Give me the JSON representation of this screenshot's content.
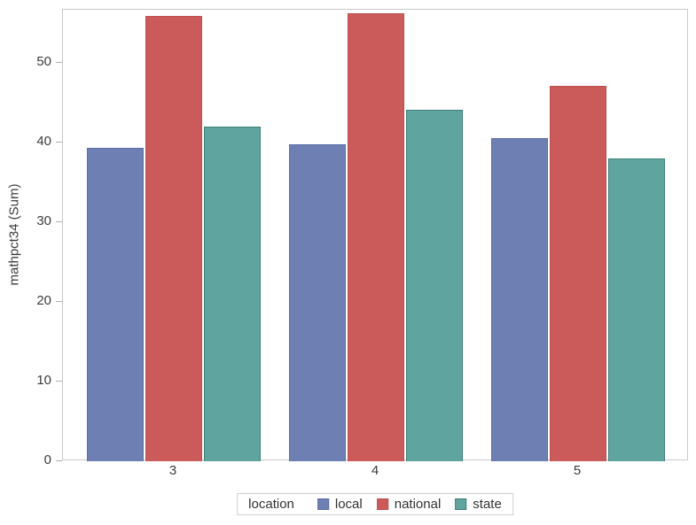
{
  "chart_data": {
    "type": "bar",
    "title": "",
    "xlabel": "",
    "ylabel": "mathpct34 (Sum)",
    "categories": [
      "3",
      "4",
      "5"
    ],
    "series": [
      {
        "name": "local",
        "color": "#6E7FB3",
        "border_color": "#5D6DA8",
        "values": [
          39.4,
          39.8,
          40.6
        ]
      },
      {
        "name": "national",
        "color": "#CB5B5B",
        "border_color": "#BE4F4F",
        "values": [
          55.9,
          56.2,
          47.1
        ]
      },
      {
        "name": "state",
        "color": "#5FA49E",
        "border_color": "#3D8079",
        "values": [
          42.0,
          44.1,
          38.0
        ]
      }
    ],
    "yticks": [
      0,
      10,
      20,
      30,
      40,
      50
    ],
    "ylim": [
      0,
      56.7
    ],
    "grid": false,
    "legend_title": "location",
    "legend_position": "bottom-center",
    "frame_color": "#C9C9C9",
    "tick_color": "#B0B0B0",
    "text_color": "#3C3C3C",
    "background_color": "#FFFFFF"
  }
}
